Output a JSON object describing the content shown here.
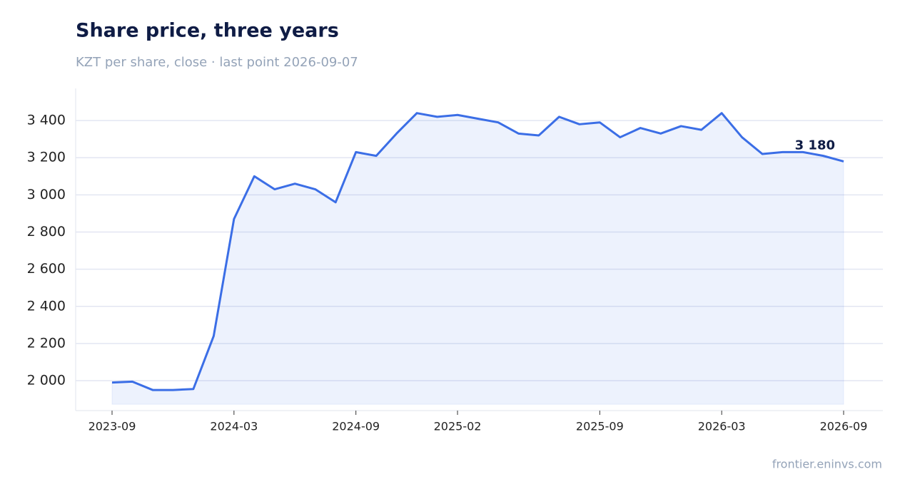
{
  "chart_data": {
    "type": "line",
    "title": "Share price, three years",
    "subtitle": "KZT per share, close · last point 2026-09-07",
    "source": "frontier.eninvs.com",
    "x": [
      "2023-09",
      "2023-10",
      "2023-11",
      "2023-12",
      "2024-01",
      "2024-02",
      "2024-03",
      "2024-04",
      "2024-05",
      "2024-06",
      "2024-07",
      "2024-08",
      "2024-09",
      "2024-10",
      "2024-11",
      "2024-12",
      "2025-01",
      "2025-02",
      "2025-03",
      "2025-04",
      "2025-05",
      "2025-06",
      "2025-07",
      "2025-08",
      "2025-09",
      "2025-10",
      "2025-11",
      "2025-12",
      "2026-01",
      "2026-02",
      "2026-03",
      "2026-04",
      "2026-05",
      "2026-06",
      "2026-07",
      "2026-08",
      "2026-09"
    ],
    "series": [
      {
        "name": "Close",
        "color": "#3b6ee6",
        "values": [
          1990,
          1995,
          1950,
          1950,
          1955,
          2240,
          2870,
          3100,
          3030,
          3060,
          3030,
          2960,
          3230,
          3210,
          3330,
          3440,
          3420,
          3430,
          3410,
          3390,
          3330,
          3320,
          3420,
          3380,
          3390,
          3310,
          3360,
          3330,
          3370,
          3350,
          3440,
          3310,
          3220,
          3230,
          3230,
          3210,
          3180
        ]
      }
    ],
    "annotation": "3 180",
    "xticks": [
      "2023-09",
      "2024-03",
      "2024-09",
      "2025-02",
      "2025-09",
      "2026-03",
      "2026-09"
    ],
    "ylim": [
      1839,
      3573
    ],
    "yticks": [
      {
        "value": 2000,
        "label": "2 000"
      },
      {
        "value": 2200,
        "label": "2 200"
      },
      {
        "value": 2400,
        "label": "2 400"
      },
      {
        "value": 2600,
        "label": "2 600"
      },
      {
        "value": 2800,
        "label": "2 800"
      },
      {
        "value": 3000,
        "label": "3 000"
      },
      {
        "value": 3200,
        "label": "3 200"
      },
      {
        "value": 3400,
        "label": "3 400"
      }
    ],
    "grid": true,
    "area": true
  }
}
